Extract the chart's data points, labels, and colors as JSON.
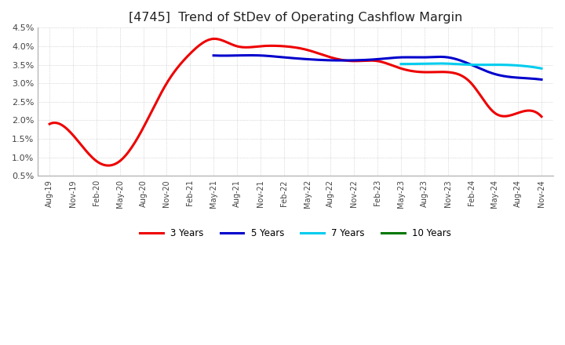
{
  "title": "[4745]  Trend of StDev of Operating Cashflow Margin",
  "title_fontsize": 11.5,
  "ylim": [
    0.005,
    0.045
  ],
  "yticks": [
    0.005,
    0.01,
    0.015,
    0.02,
    0.025,
    0.03,
    0.035,
    0.04,
    0.045
  ],
  "ytick_labels": [
    "0.5%",
    "1.0%",
    "1.5%",
    "2.0%",
    "2.5%",
    "3.0%",
    "3.5%",
    "4.0%",
    "4.5%"
  ],
  "background_color": "#ffffff",
  "plot_bg_color": "#ffffff",
  "grid_color": "#aaaaaa",
  "legend_entries": [
    "3 Years",
    "5 Years",
    "7 Years",
    "10 Years"
  ],
  "legend_colors": [
    "#ee0000",
    "#0000cc",
    "#00ccee",
    "#007700"
  ],
  "x_labels": [
    "Aug-19",
    "Nov-19",
    "Feb-20",
    "May-20",
    "Aug-20",
    "Nov-20",
    "Feb-21",
    "May-21",
    "Aug-21",
    "Nov-21",
    "Feb-22",
    "May-22",
    "Aug-22",
    "Nov-22",
    "Feb-23",
    "May-23",
    "Aug-23",
    "Nov-23",
    "Feb-24",
    "May-24",
    "Aug-24",
    "Nov-24"
  ],
  "series_3y": {
    "x": [
      0,
      1,
      2,
      3,
      4,
      5,
      6,
      7,
      8,
      9,
      10,
      11,
      12,
      13,
      14,
      15,
      16,
      17,
      18,
      19,
      20,
      21
    ],
    "y": [
      0.019,
      0.016,
      0.009,
      0.009,
      0.018,
      0.03,
      0.038,
      0.042,
      0.04,
      0.04,
      0.04,
      0.039,
      0.037,
      0.036,
      0.036,
      0.034,
      0.033,
      0.033,
      0.03,
      0.022,
      0.022,
      0.021
    ],
    "color": "#ee0000",
    "linewidth": 2.2
  },
  "series_5y": {
    "x": [
      7,
      8,
      9,
      10,
      11,
      12,
      13,
      14,
      15,
      16,
      17,
      18,
      19,
      20,
      21
    ],
    "y": [
      0.0375,
      0.0375,
      0.0375,
      0.037,
      0.0365,
      0.0362,
      0.0362,
      0.0365,
      0.037,
      0.037,
      0.037,
      0.035,
      0.0325,
      0.0315,
      0.031
    ],
    "color": "#0000cc",
    "linewidth": 2.2
  },
  "series_7y": {
    "x": [
      15,
      16,
      17,
      18,
      19,
      20,
      21
    ],
    "y": [
      0.0352,
      0.0353,
      0.0353,
      0.035,
      0.035,
      0.0348,
      0.034
    ],
    "color": "#00ccee",
    "linewidth": 2.2
  },
  "series_10y": {
    "x": [],
    "y": [],
    "color": "#007700",
    "linewidth": 2.2
  }
}
